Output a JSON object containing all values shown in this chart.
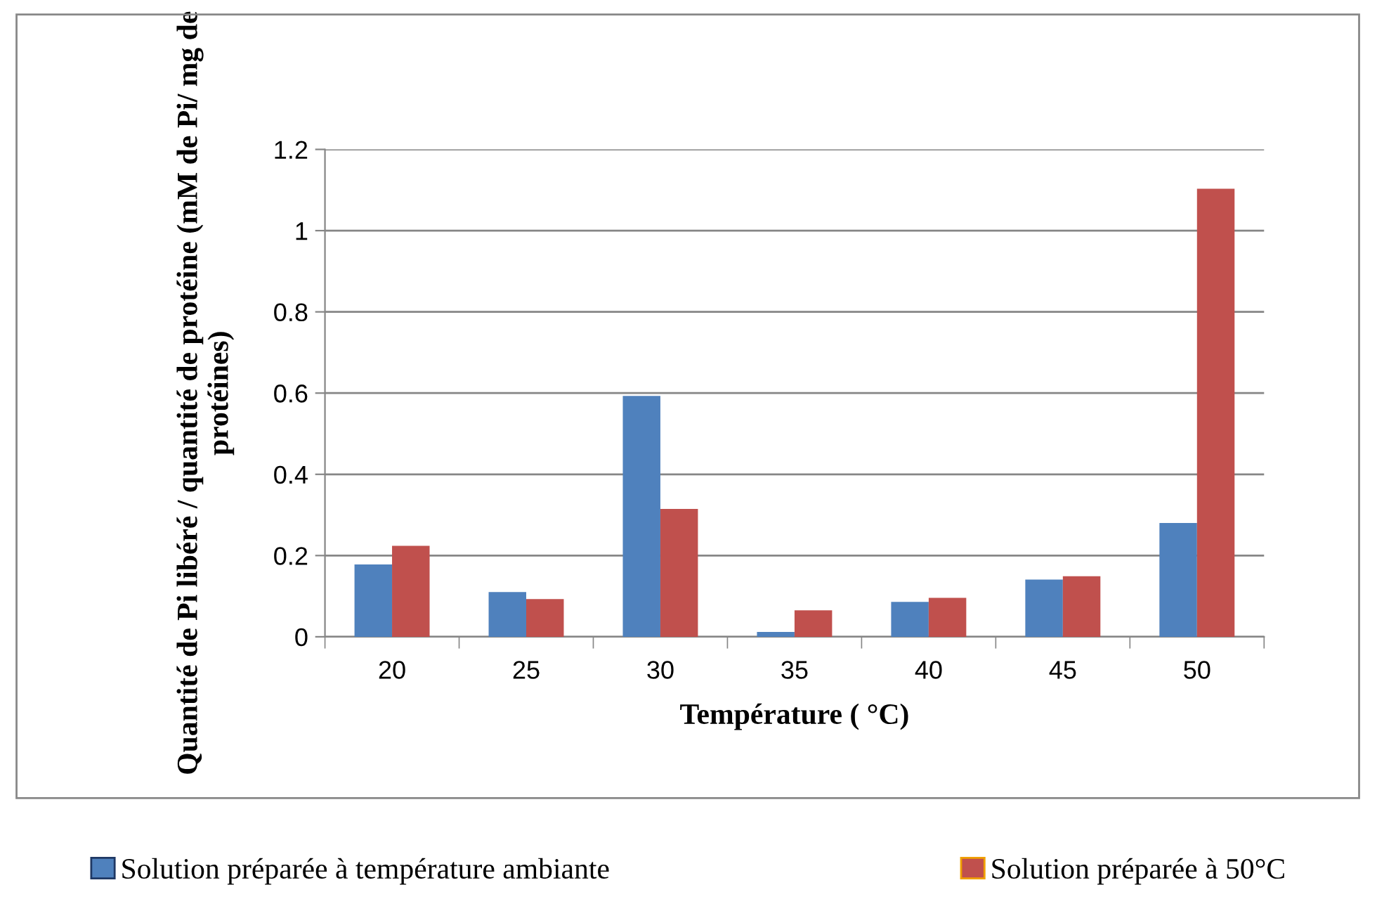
{
  "chart_data": {
    "type": "bar",
    "categories": [
      "20",
      "25",
      "30",
      "35",
      "40",
      "45",
      "50"
    ],
    "series": [
      {
        "name": "Solution préparée à température ambiante",
        "color": "#4f81bd",
        "values": [
          0.178,
          0.11,
          0.593,
          0.012,
          0.086,
          0.141,
          0.28
        ]
      },
      {
        "name": "Solution préparée à 50°C",
        "color": "#c0504d",
        "values": [
          0.224,
          0.093,
          0.315,
          0.065,
          0.096,
          0.149,
          1.103
        ]
      }
    ],
    "xlabel": "Température ( °C)",
    "ylabel": "Quantité de Pi libéré / quantité de protéine (mM de Pi/ mg de protéines)",
    "ylim": [
      0,
      1.2
    ],
    "yticks": [
      {
        "value": 0,
        "label": "0"
      },
      {
        "value": 0.2,
        "label": "0.2"
      },
      {
        "value": 0.4,
        "label": "0.4"
      },
      {
        "value": 0.6,
        "label": "0.6"
      },
      {
        "value": 0.8,
        "label": "0.8"
      },
      {
        "value": 1,
        "label": "1"
      },
      {
        "value": 1.2,
        "label": "1.2"
      }
    ],
    "grid": "y",
    "legend": "bottom"
  }
}
